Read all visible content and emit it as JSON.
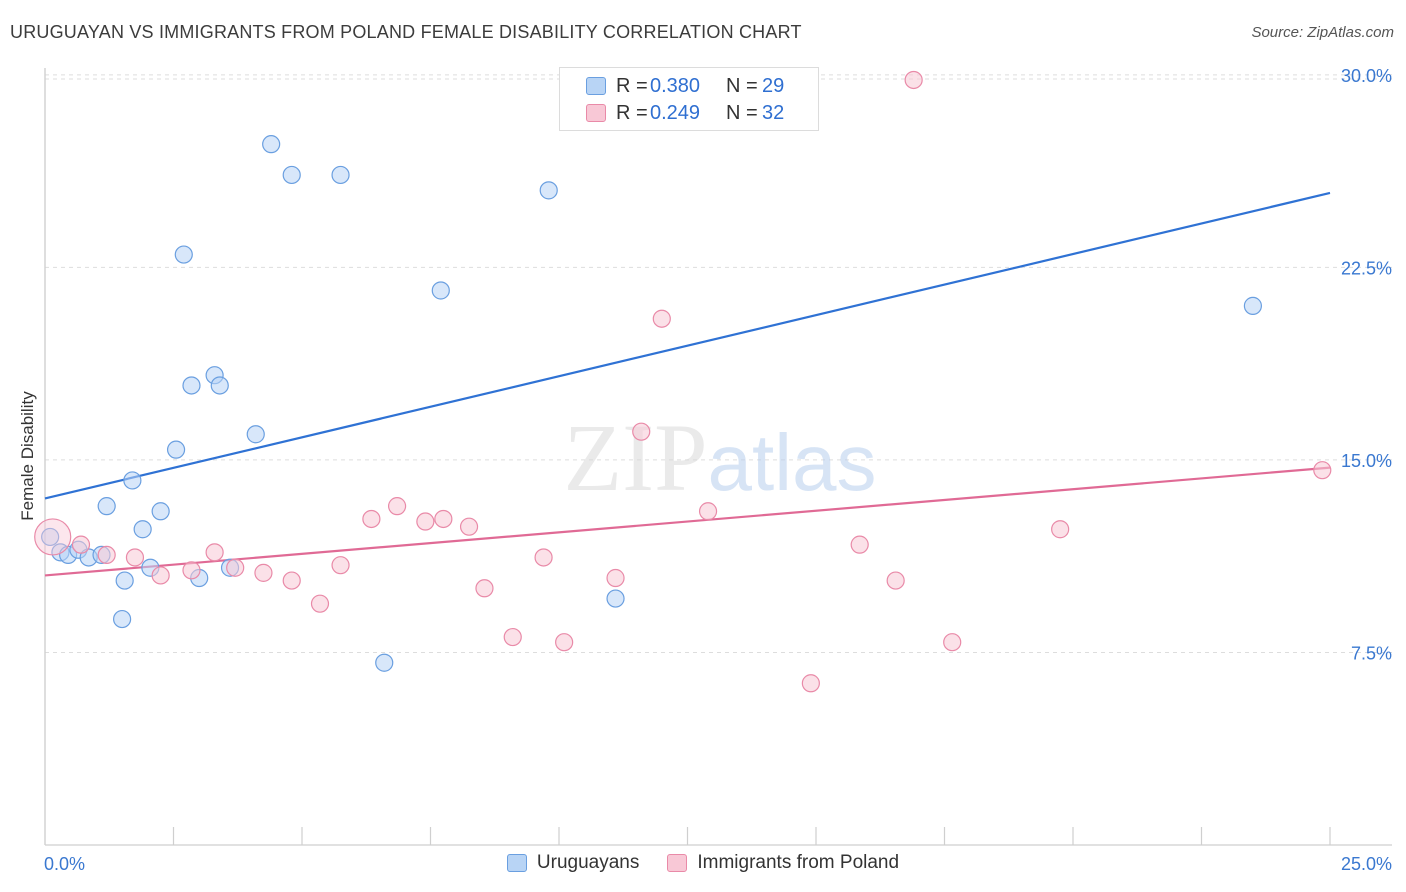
{
  "header": {
    "title": "URUGUAYAN VS IMMIGRANTS FROM POLAND FEMALE DISABILITY CORRELATION CHART",
    "source": "Source: ZipAtlas.com"
  },
  "colors": {
    "uruguayans_fill": "#b8d4f5",
    "uruguayans_stroke": "#6a9fe0",
    "uruguayans_line": "#2f72d4",
    "poland_fill": "#f8c8d6",
    "poland_stroke": "#e98aa8",
    "poland_line": "#e06a95",
    "tick_label": "#3a78d0"
  },
  "legend_top": {
    "rows": [
      {
        "r_label": "R =",
        "r_value": "0.380",
        "n_label": "N =",
        "n_value": "29"
      },
      {
        "r_label": "R =",
        "r_value": "0.249",
        "n_label": "N =",
        "n_value": "32"
      }
    ]
  },
  "legend_bottom": {
    "items": [
      {
        "label": "Uruguayans"
      },
      {
        "label": "Immigrants from Poland"
      }
    ]
  },
  "chart_data": {
    "type": "scatter",
    "title": "URUGUAYAN VS IMMIGRANTS FROM POLAND FEMALE DISABILITY CORRELATION CHART",
    "xlabel": "",
    "ylabel": "Female Disability",
    "xlim": [
      0,
      25
    ],
    "ylim": [
      0,
      30.5
    ],
    "x_tick_labels": [
      "0.0%",
      "25.0%"
    ],
    "y_ticks": [
      7.5,
      15.0,
      22.5,
      30.0
    ],
    "y_tick_labels": [
      "7.5%",
      "15.0%",
      "22.5%",
      "30.0%"
    ],
    "grid": true,
    "legend_placement": "top-center",
    "watermark": "ZIPatlas",
    "series": [
      {
        "name": "Uruguayans",
        "r": 0.38,
        "n": 29,
        "trend": {
          "x": [
            0,
            25
          ],
          "y": [
            13.5,
            25.4
          ]
        },
        "points": [
          {
            "x": 0.1,
            "y": 12.0
          },
          {
            "x": 0.3,
            "y": 11.4
          },
          {
            "x": 0.45,
            "y": 11.3
          },
          {
            "x": 0.65,
            "y": 11.5
          },
          {
            "x": 0.85,
            "y": 11.2
          },
          {
            "x": 1.1,
            "y": 11.3
          },
          {
            "x": 1.5,
            "y": 8.8
          },
          {
            "x": 1.55,
            "y": 10.3
          },
          {
            "x": 1.2,
            "y": 13.2
          },
          {
            "x": 1.7,
            "y": 14.2
          },
          {
            "x": 1.9,
            "y": 12.3
          },
          {
            "x": 2.05,
            "y": 10.8
          },
          {
            "x": 2.25,
            "y": 13.0
          },
          {
            "x": 2.55,
            "y": 15.4
          },
          {
            "x": 2.7,
            "y": 23.0
          },
          {
            "x": 2.85,
            "y": 17.9
          },
          {
            "x": 3.0,
            "y": 10.4
          },
          {
            "x": 3.3,
            "y": 18.3
          },
          {
            "x": 3.4,
            "y": 17.9
          },
          {
            "x": 3.6,
            "y": 10.8
          },
          {
            "x": 4.1,
            "y": 16.0
          },
          {
            "x": 4.4,
            "y": 27.3
          },
          {
            "x": 4.8,
            "y": 26.1
          },
          {
            "x": 5.75,
            "y": 26.1
          },
          {
            "x": 6.6,
            "y": 7.1
          },
          {
            "x": 7.7,
            "y": 21.6
          },
          {
            "x": 9.8,
            "y": 25.5
          },
          {
            "x": 11.1,
            "y": 9.6
          },
          {
            "x": 23.5,
            "y": 21.0
          }
        ]
      },
      {
        "name": "Immigrants from Poland",
        "r": 0.249,
        "n": 32,
        "trend": {
          "x": [
            0,
            25
          ],
          "y": [
            10.5,
            14.7
          ]
        },
        "points": [
          {
            "x": 0.15,
            "y": 12.0
          },
          {
            "x": 0.7,
            "y": 11.7
          },
          {
            "x": 1.2,
            "y": 11.3
          },
          {
            "x": 1.75,
            "y": 11.2
          },
          {
            "x": 2.25,
            "y": 10.5
          },
          {
            "x": 2.85,
            "y": 10.7
          },
          {
            "x": 3.3,
            "y": 11.4
          },
          {
            "x": 3.7,
            "y": 10.8
          },
          {
            "x": 4.25,
            "y": 10.6
          },
          {
            "x": 4.8,
            "y": 10.3
          },
          {
            "x": 5.35,
            "y": 9.4
          },
          {
            "x": 5.75,
            "y": 10.9
          },
          {
            "x": 6.35,
            "y": 12.7
          },
          {
            "x": 6.85,
            "y": 13.2
          },
          {
            "x": 7.4,
            "y": 12.6
          },
          {
            "x": 7.75,
            "y": 12.7
          },
          {
            "x": 8.25,
            "y": 12.4
          },
          {
            "x": 8.55,
            "y": 10.0
          },
          {
            "x": 9.1,
            "y": 8.1
          },
          {
            "x": 9.7,
            "y": 11.2
          },
          {
            "x": 10.1,
            "y": 7.9
          },
          {
            "x": 11.1,
            "y": 10.4
          },
          {
            "x": 11.6,
            "y": 16.1
          },
          {
            "x": 12.0,
            "y": 20.5
          },
          {
            "x": 12.9,
            "y": 13.0
          },
          {
            "x": 14.9,
            "y": 6.3
          },
          {
            "x": 15.85,
            "y": 11.7
          },
          {
            "x": 16.55,
            "y": 10.3
          },
          {
            "x": 16.9,
            "y": 29.8
          },
          {
            "x": 17.65,
            "y": 7.9
          },
          {
            "x": 19.75,
            "y": 12.3
          },
          {
            "x": 24.85,
            "y": 14.6
          }
        ]
      }
    ]
  }
}
